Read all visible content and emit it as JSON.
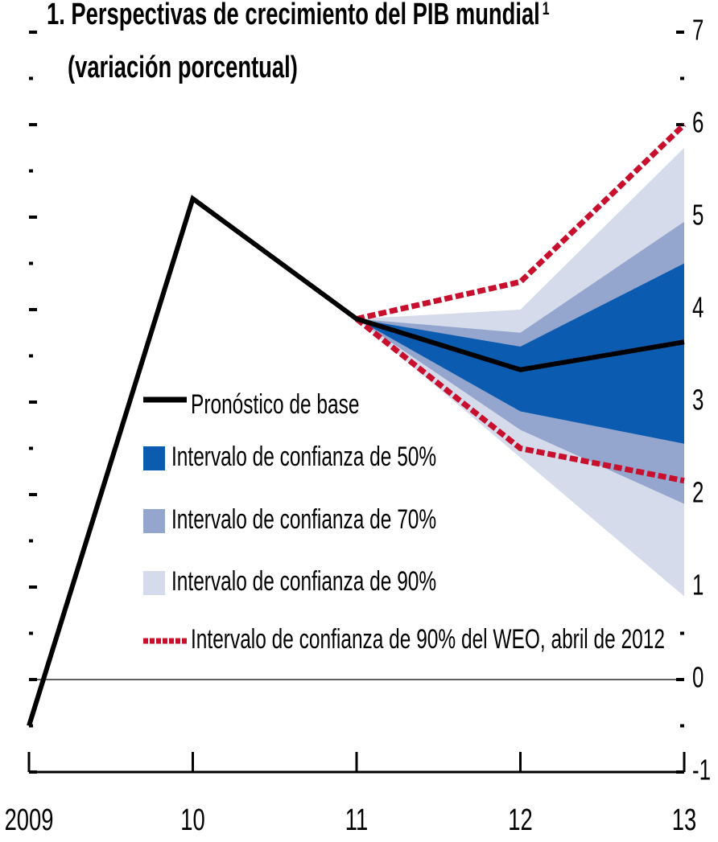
{
  "chart_data": {
    "type": "line",
    "title": "1. Perspectivas de crecimiento del PIB mundial",
    "title_note": "1",
    "subtitle": "(variación porcentual)",
    "x": [
      2009,
      2010,
      2011,
      2012,
      2013
    ],
    "xlim": [
      2009,
      2013
    ],
    "xticks": [
      {
        "value": 2009,
        "label": "2009"
      },
      {
        "value": 2010,
        "label": "10"
      },
      {
        "value": 2011,
        "label": "11"
      },
      {
        "value": 2012,
        "label": "12"
      },
      {
        "value": 2013,
        "label": "13"
      }
    ],
    "ylim": [
      -1,
      7
    ],
    "yticks": [
      -1,
      0,
      1,
      2,
      3,
      4,
      5,
      6,
      7
    ],
    "yticks_minor": [
      -0.5,
      0.5,
      1.5,
      2.5,
      3.5,
      4.5,
      5.5,
      6.5
    ],
    "zero_line": true,
    "series": [
      {
        "name": "Pronóstico de base",
        "color": "#000000",
        "values": [
          -0.5,
          5.2,
          3.9,
          3.35,
          3.65
        ]
      }
    ],
    "bands": [
      {
        "name": "Intervalo de confianza de 50%",
        "color": "#0b5cb0",
        "style": "fill",
        "lower": [
          null,
          null,
          3.9,
          2.9,
          2.55
        ],
        "upper": [
          null,
          null,
          3.9,
          3.6,
          4.5
        ]
      },
      {
        "name": "Intervalo de confianza de 70%",
        "color": "#94a5ce",
        "style": "fill",
        "lower": [
          null,
          null,
          3.9,
          2.7,
          1.9
        ],
        "upper": [
          null,
          null,
          3.9,
          3.75,
          4.95
        ]
      },
      {
        "name": "Intervalo de confianza de 90%",
        "color": "#d5dbeb",
        "style": "fill",
        "lower": [
          null,
          null,
          3.9,
          2.4,
          0.9
        ],
        "upper": [
          null,
          null,
          3.9,
          4.0,
          5.75
        ]
      },
      {
        "name": "Intervalo de confianza de 90% del WEO, abril de 2012",
        "color": "#c8102e",
        "style": "dashed",
        "lower": [
          null,
          null,
          3.9,
          2.5,
          2.15
        ],
        "upper": [
          null,
          null,
          3.9,
          4.3,
          6.0
        ]
      }
    ]
  }
}
